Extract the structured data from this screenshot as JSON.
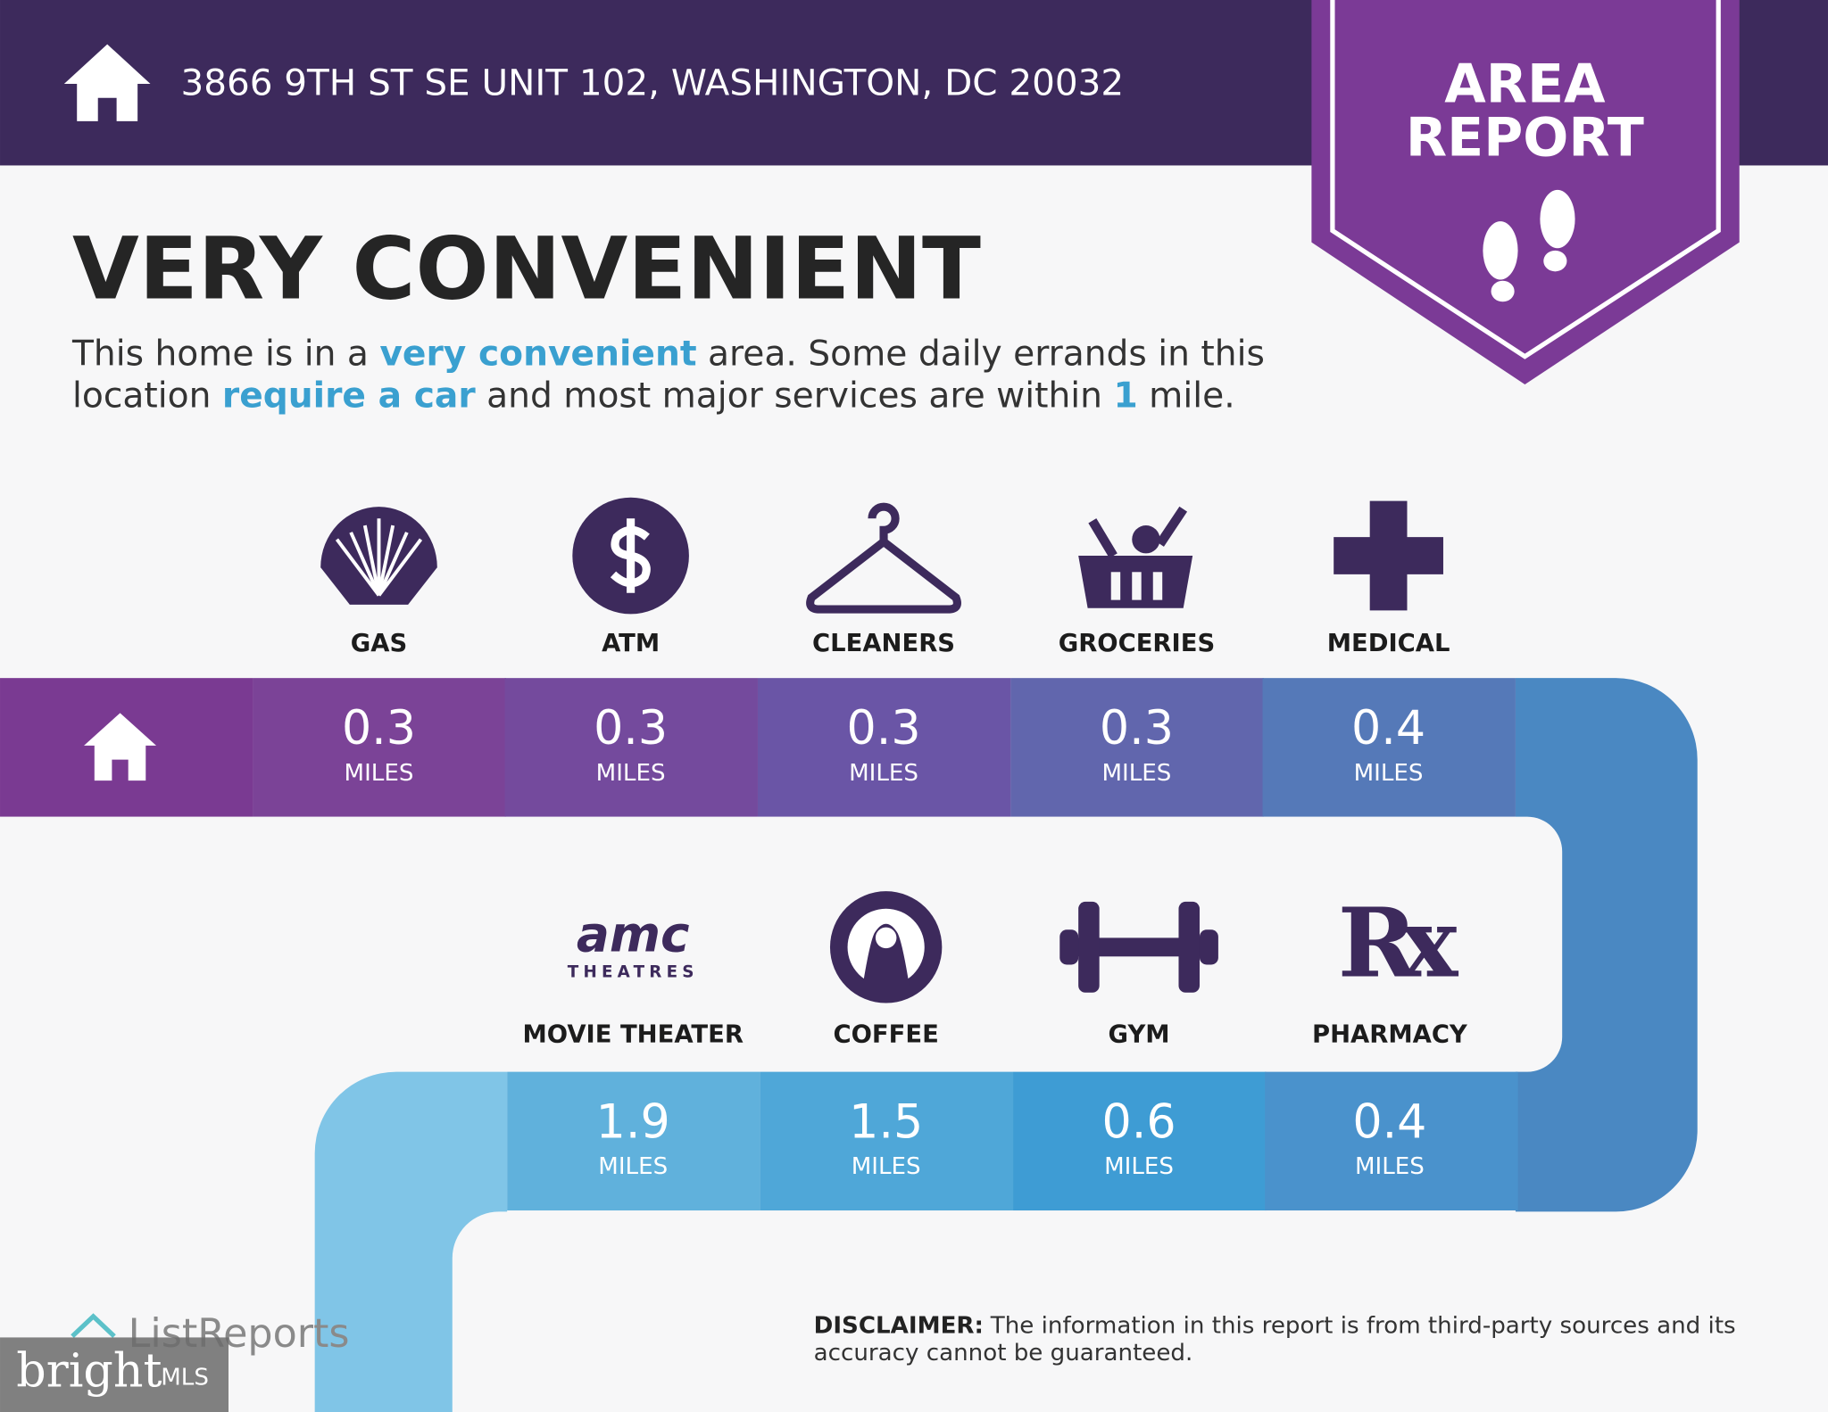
{
  "header": {
    "address": "3866 9TH ST SE UNIT 102, WASHINGTON, DC 20032"
  },
  "badge": {
    "lines": [
      "AREA",
      "REPORT"
    ]
  },
  "headline": "VERY CONVENIENT",
  "summary": [
    [
      {
        "text": "This home is in a ",
        "highlight": false
      },
      {
        "text": "very convenient",
        "highlight": true
      },
      {
        "text": " area. Some daily errands in this",
        "highlight": false
      }
    ],
    [
      {
        "text": "location ",
        "highlight": false
      },
      {
        "text": "require a car",
        "highlight": true
      },
      {
        "text": " and most major services are within ",
        "highlight": false
      },
      {
        "text": "1",
        "highlight": true
      },
      {
        "text": " mile.",
        "highlight": false
      }
    ]
  ],
  "amenities": [
    {
      "name": "GAS",
      "distance": 0.3,
      "unit": "MILES"
    },
    {
      "name": "ATM",
      "distance": 0.3,
      "unit": "MILES"
    },
    {
      "name": "CLEANERS",
      "distance": 0.3,
      "unit": "MILES"
    },
    {
      "name": "GROCERIES",
      "distance": 0.3,
      "unit": "MILES"
    },
    {
      "name": "MEDICAL",
      "distance": 0.4,
      "unit": "MILES"
    },
    {
      "name": "MOVIE THEATER",
      "distance": 1.9,
      "unit": "MILES",
      "logo": [
        "amc",
        "THEATRES"
      ]
    },
    {
      "name": "COFFEE",
      "distance": 1.5,
      "unit": "MILES"
    },
    {
      "name": "GYM",
      "distance": 0.6,
      "unit": "MILES"
    },
    {
      "name": "PHARMACY",
      "distance": 0.4,
      "unit": "MILES",
      "logo": [
        "Rx"
      ]
    }
  ],
  "branding": "ListReports",
  "watermark": {
    "brand": "bright",
    "sub": "MLS"
  },
  "disclaimer": {
    "label": "DISCLAIMER:",
    "lines": [
      "The information in this report is from third-party sources and its",
      "accuracy cannot be guaranteed."
    ]
  }
}
